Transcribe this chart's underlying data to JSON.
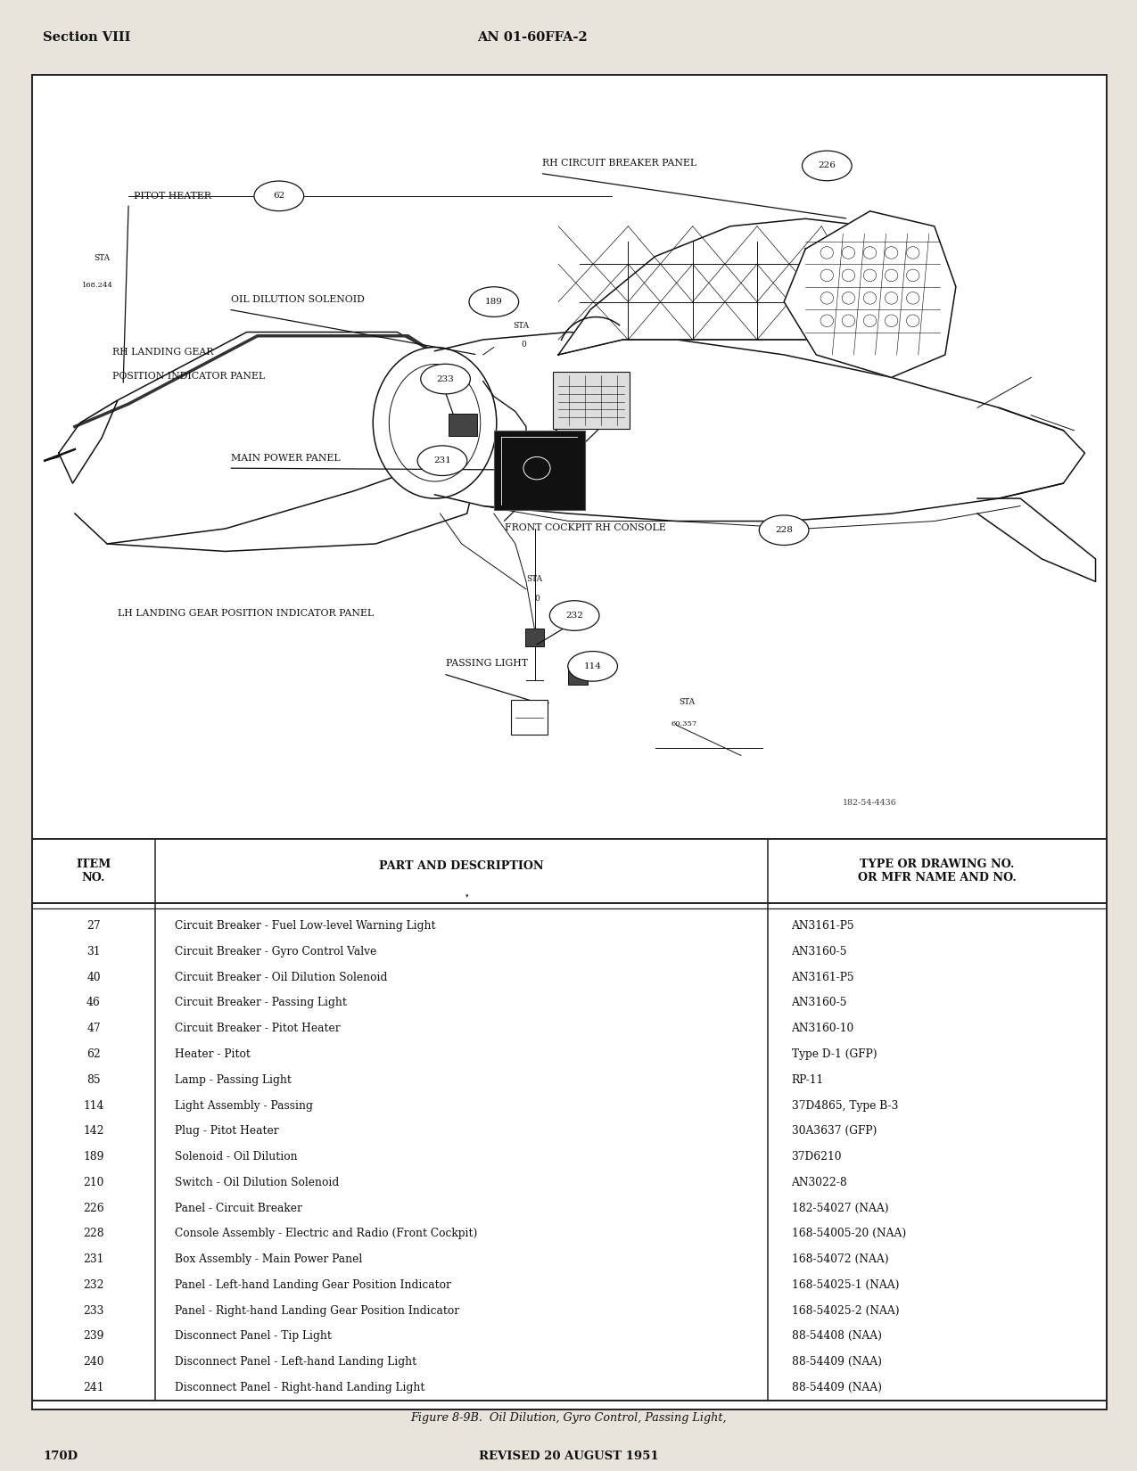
{
  "page_bg": "#e8e4dc",
  "content_bg": "#ffffff",
  "header_left": "Section VIII",
  "header_center": "AN 01-60FFA-2",
  "footer_left": "170D",
  "footer_center": "REVISED 20 AUGUST 1951",
  "figure_caption": "Figure 8-9B.  Oil Dilution, Gyro Control, Passing Light,",
  "figure_number": "182-54-4436",
  "col_sep1": 0.115,
  "col_sep2": 0.685,
  "table_rows": [
    [
      "27",
      "Circuit Breaker - Fuel Low-level Warning Light",
      "AN3161-P5"
    ],
    [
      "31",
      "Circuit Breaker - Gyro Control Valve",
      "AN3160-5"
    ],
    [
      "40",
      "Circuit Breaker - Oil Dilution Solenoid",
      "AN3161-P5"
    ],
    [
      "46",
      "Circuit Breaker - Passing Light",
      "AN3160-5"
    ],
    [
      "47",
      "Circuit Breaker - Pitot Heater",
      "AN3160-10"
    ],
    [
      "62",
      "Heater - Pitot",
      "Type D-1 (GFP)"
    ],
    [
      "85",
      "Lamp - Passing Light",
      "RP-11"
    ],
    [
      "114",
      "Light Assembly - Passing",
      "37D4865, Type B-3"
    ],
    [
      "142",
      "Plug - Pitot Heater",
      "30A3637 (GFP)"
    ],
    [
      "189",
      "Solenoid - Oil Dilution",
      "37D6210"
    ],
    [
      "210",
      "Switch - Oil Dilution Solenoid",
      "AN3022-8"
    ],
    [
      "226",
      "Panel - Circuit Breaker",
      "182-54027 (NAA)"
    ],
    [
      "228",
      "Console Assembly - Electric and Radio (Front Cockpit)",
      "168-54005-20 (NAA)"
    ],
    [
      "231",
      "Box Assembly - Main Power Panel",
      "168-54072 (NAA)"
    ],
    [
      "232",
      "Panel - Left-hand Landing Gear Position Indicator",
      "168-54025-1 (NAA)"
    ],
    [
      "233",
      "Panel - Right-hand Landing Gear Position Indicator",
      "168-54025-2 (NAA)"
    ],
    [
      "239",
      "Disconnect Panel - Tip Light",
      "88-54408 (NAA)"
    ],
    [
      "240",
      "Disconnect Panel - Left-hand Landing Light",
      "88-54409 (NAA)"
    ],
    [
      "241",
      "Disconnect Panel - Right-hand Landing Light",
      "88-54409 (NAA)"
    ]
  ]
}
